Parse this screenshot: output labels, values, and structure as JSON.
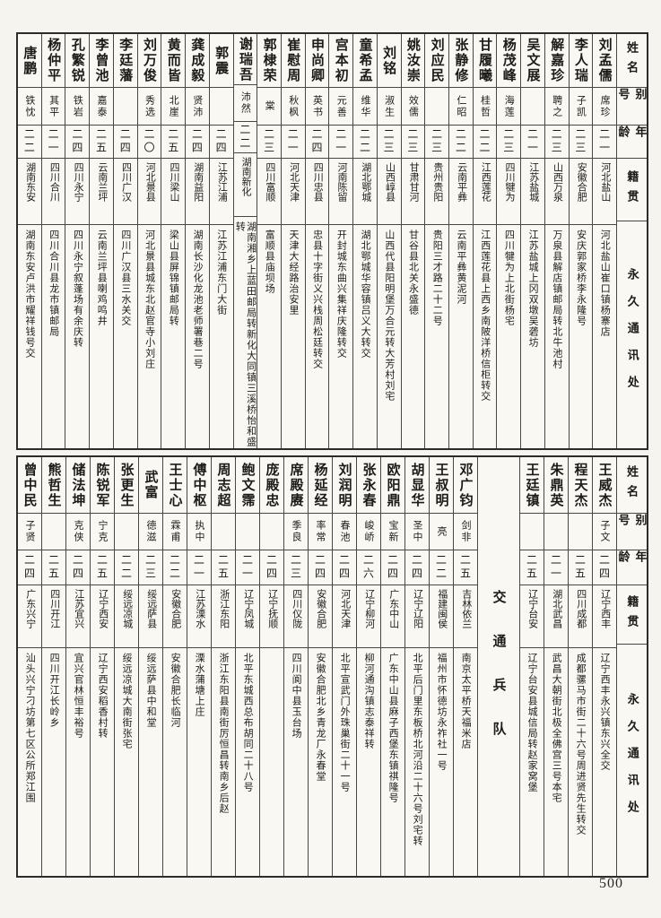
{
  "page": {
    "number": "500"
  },
  "headers": {
    "name": "姓名",
    "alias": "别号",
    "age": "年龄",
    "origin": "籍贯",
    "address": "永久通讯处"
  },
  "table1": {
    "people": [
      {
        "name": "刘孟儒",
        "alias": "席珍",
        "age": "二一",
        "origin": "河北盐山",
        "address": "河北盐山崔口镇杨寨店"
      },
      {
        "name": "李人瑞",
        "alias": "子凯",
        "age": "二三",
        "origin": "安徽合肥",
        "address": "安庆郭家桥李永隆号"
      },
      {
        "name": "解嘉珍",
        "alias": "聘之",
        "age": "二三",
        "origin": "山西万泉",
        "address": "万泉县解店镇邮局转北牛池村"
      },
      {
        "name": "吴文展",
        "alias": "",
        "age": "二一",
        "origin": "江苏盐城",
        "address": "江苏盐城上冈双墩吴砻坊"
      },
      {
        "name": "杨茂峰",
        "alias": "海莲",
        "age": "二三",
        "origin": "四川犍为",
        "address": "四川犍为上北街杨宅"
      },
      {
        "name": "甘履曦",
        "alias": "桂哲",
        "age": "二二",
        "origin": "江西莲花",
        "address": "江西莲花县上西乡南陂洋桥信柜转交"
      },
      {
        "name": "张静修",
        "alias": "仁昭",
        "age": "二二",
        "origorigin": "",
        "origin": "云南平彝",
        "address": "云南平彝黄泥河"
      },
      {
        "name": "刘应民",
        "alias": "",
        "age": "二三",
        "origin": "贵州贵阳",
        "address": "贵阳三才路二十二号"
      },
      {
        "name": "姚汝崇",
        "alias": "效儒",
        "age": "二三",
        "origin": "甘肃甘河",
        "address": "甘谷县北关永盛德"
      },
      {
        "name": "刘铭",
        "alias": "淑生",
        "age": "二三",
        "origin": "山西崞县",
        "address": "山西代县阳明堡万合元转大芳村刘宅"
      },
      {
        "name": "童希孟",
        "alias": "维华",
        "age": "二二",
        "origin": "湖北鄂城",
        "address": "湖北鄂城华容镇吕义大转交"
      },
      {
        "name": "宫本初",
        "alias": "元善",
        "age": "二一",
        "origin": "河南陈留",
        "address": "开封城东曲兴集祥庆隆转交"
      },
      {
        "name": "申尚卿",
        "alias": "英书",
        "age": "二四",
        "origin": "四川忠县",
        "address": "忠县十字街义兴栈周松廷转交"
      },
      {
        "name": "崔慰周",
        "alias": "秋枫",
        "age": "二一",
        "origin": "河北天津",
        "address": "天津大经路治安里"
      },
      {
        "name": "郭棣荣",
        "alias": "棠",
        "age": "二三",
        "origin": "四川富顺",
        "address": "富顺县庙坝场"
      },
      {
        "name": "谢瑞吾",
        "alias": "沛然",
        "age": "二二",
        "origin": "湖南新化",
        "address": "湖南湘乡上蓝田邮局转新化大同镇三溪桥怡和盛转"
      },
      {
        "name": "郭震",
        "alias": "",
        "age": "二四",
        "origin": "江苏江浦",
        "address": "江苏江浦东门大街"
      },
      {
        "name": "龚成毅",
        "alias": "贤沛",
        "age": "二四",
        "origin": "湖南益阳",
        "address": "湖南长沙化龙池老师署巷二号"
      },
      {
        "name": "黄而皆",
        "alias": "北崖",
        "age": "二五",
        "origin": "四川梁山",
        "address": "梁山县屏锦镇邮局转"
      },
      {
        "name": "刘万俊",
        "alias": "秀选",
        "age": "二〇",
        "origin": "河北景县",
        "address": "河北景县城东北赵官寺小刘庄"
      },
      {
        "name": "李廷藩",
        "alias": "",
        "age": "二四",
        "origin": "四川广汉",
        "address": "四川广汉县三水关交"
      },
      {
        "name": "李曾池",
        "alias": "嘉泰",
        "age": "二五",
        "origin": "云南兰坪",
        "address": "云南兰坪县喇鸡鸣井"
      },
      {
        "name": "孔繁锐",
        "alias": "铁岩",
        "age": "二四",
        "origin": "四川永宁",
        "address": "四川永宁叙蓬场有余庆转"
      },
      {
        "name": "杨仲平",
        "alias": "其平",
        "age": "二一",
        "origin": "四川合川",
        "address": "四川合川县龙市镇邮局"
      },
      {
        "name": "唐鹏",
        "alias": "铁忱",
        "age": "二二",
        "origin": "湖南东安",
        "address": "湖南东安卢洪市耀祥钱号交"
      }
    ]
  },
  "table2": {
    "division": "交通兵队",
    "group_a": [
      {
        "name": "王威杰",
        "alias": "子文",
        "age": "二四",
        "origin": "辽宁西丰",
        "address": "辽宁西丰永兴镇东兴全交"
      },
      {
        "name": "程天杰",
        "alias": "",
        "age": "二五",
        "origin": "四川成都",
        "address": "成都骡马市街二十六号周进贤先生转交"
      },
      {
        "name": "朱鼎英",
        "alias": "",
        "age": "二一",
        "origin": "湖北武昌",
        "address": "武昌大朝街北极全佛宫三号本宅"
      },
      {
        "name": "王廷镇",
        "alias": "",
        "age": "二五",
        "origin": "辽宁台安",
        "address": "辽宁台安县城信局转赵家窝堡"
      }
    ],
    "group_b": [
      {
        "name": "邓广钧",
        "alias": "剑非",
        "age": "二五",
        "origin": "吉林依兰",
        "address": "南京太平桥天福米店"
      },
      {
        "name": "王叔明",
        "alias": "亮",
        "age": "二二",
        "origin": "福建闽侯",
        "address": "福州市怀德坊永祚社一号"
      },
      {
        "name": "胡显华",
        "alias": "圣中",
        "age": "二四",
        "origin": "辽宁辽阳",
        "address": "北平后门里东板桥北河沿二十六号刘宅转"
      },
      {
        "name": "欧阳鼎",
        "alias": "宝新",
        "age": "二四",
        "origin": "广东中山",
        "address": "广东中山县麻子西堡东镇祺隆号"
      },
      {
        "name": "张永春",
        "alias": "峻峤",
        "age": "二六",
        "origin": "辽宁柳河",
        "address": "柳河通沟镇志泰祥转"
      },
      {
        "name": "刘润明",
        "alias": "春池",
        "age": "二四",
        "origin": "河北天津",
        "address": "北平宣武门外珠巢街二十一号"
      },
      {
        "name": "杨延经",
        "alias": "率常",
        "age": "二四",
        "origin": "安徽合肥",
        "address": "安徽合肥北乡青龙厂永春堂"
      },
      {
        "name": "席殿赓",
        "alias": "季良",
        "age": "二三",
        "origin": "四川仪陇",
        "address": "四川阆中县玉台场"
      },
      {
        "name": "庞殿忠",
        "alias": "",
        "age": "二四",
        "origin": "辽宁抚顺",
        "address": ""
      },
      {
        "name": "鲍文霈",
        "alias": "",
        "age": "二一",
        "origin": "辽宁凤城",
        "address": "北平东城西总布胡同二十八号"
      },
      {
        "name": "周志超",
        "alias": "",
        "age": "二五",
        "origin": "浙江东阳",
        "address": "浙江东阳县南街厉恒昌转南乡后赵"
      },
      {
        "name": "傅中枢",
        "alias": "执中",
        "age": "二一",
        "origin": "江苏溧水",
        "address": "溧水蒲塘上庄"
      },
      {
        "name": "王士心",
        "alias": "霖甫",
        "age": "二二",
        "origin": "安徽合肥",
        "address": "安徽合肥长临河"
      },
      {
        "name": "武富",
        "alias": "德滋",
        "age": "二三",
        "origin": "绥远萨县",
        "address": "绥远萨县中和堂"
      },
      {
        "name": "张更生",
        "alias": "",
        "age": "二二",
        "origin": "绥远凉城",
        "address": "绥远凉城大南街张宅"
      },
      {
        "name": "陈锐军",
        "alias": "宁克",
        "age": "二五",
        "origin": "辽宁西安",
        "address": "辽宁西安稻香村转"
      },
      {
        "name": "储法坤",
        "alias": "克侠",
        "age": "二四",
        "origin": "江苏宜兴",
        "address": "宜兴官林恒丰裕号"
      },
      {
        "name": "熊哲生",
        "alias": "",
        "age": "二五",
        "origin": "四川开江",
        "address": "四川开江长岭乡"
      },
      {
        "name": "曾中民",
        "alias": "子贤",
        "age": "二四",
        "origin": "广东兴宁",
        "address": "汕头兴宁刁坊第七区公所郑江围"
      }
    ]
  }
}
